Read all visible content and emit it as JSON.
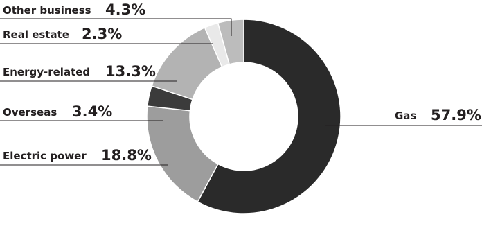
{
  "chart_data": {
    "type": "donut",
    "categories": [
      "Gas",
      "Electric power",
      "Overseas",
      "Energy-related",
      "Real estate",
      "Other business"
    ],
    "values": [
      57.9,
      18.8,
      3.4,
      13.3,
      2.3,
      4.3
    ],
    "value_labels": [
      "57.9%",
      "18.8%",
      "3.4%",
      "13.3%",
      "2.3%",
      "4.3%"
    ],
    "colors": [
      "#2a2a2a",
      "#9d9d9d",
      "#3b3b3b",
      "#b3b3b3",
      "#e9e9e9",
      "#bcbcbc"
    ]
  }
}
